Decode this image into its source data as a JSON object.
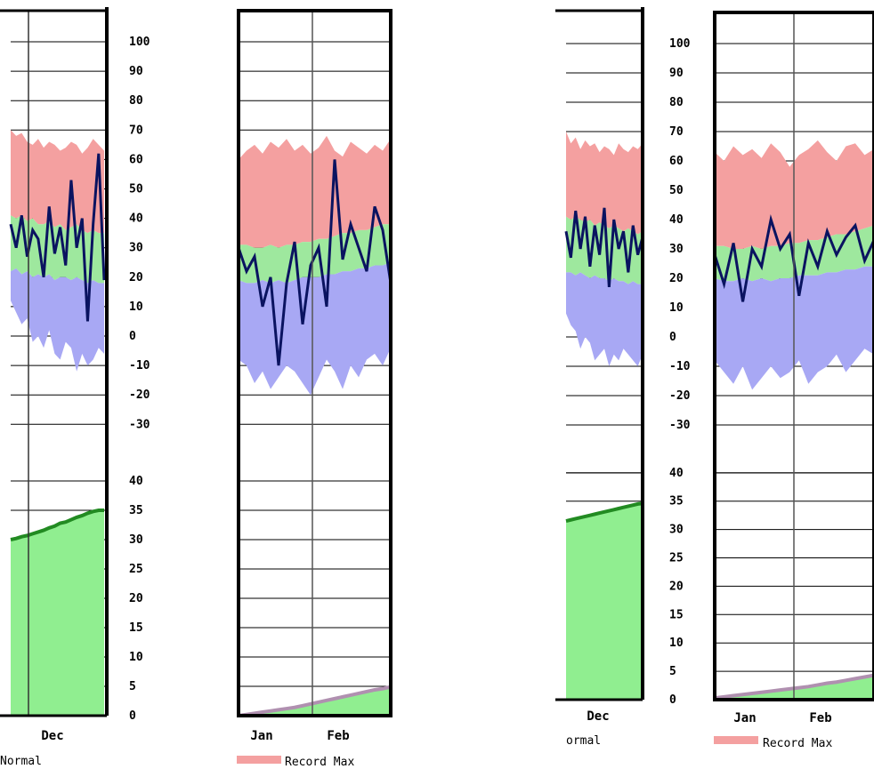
{
  "legend": {
    "normal_label": "Normal",
    "normal_label_cropped": "ormal",
    "record_max_label": "Record Max",
    "record_max_color": "#f4a0a0"
  },
  "colors": {
    "record_max": "#f4a0a0",
    "normal": "#9ee89e",
    "record_min": "#a8a8f4",
    "observed": "#0a1360",
    "snow_fill": "#90ee90",
    "snow_line": "#228b22",
    "accum_line": "#b090b0",
    "grid": "#000000"
  },
  "chart_data": [
    {
      "type": "area",
      "panel": "temperature-and-snow-left",
      "months": [
        "Dec",
        "Jan",
        "Feb"
      ],
      "temp_axis": {
        "ticks": [
          100,
          90,
          80,
          70,
          60,
          50,
          40,
          30,
          20,
          10,
          0,
          -10,
          -20,
          -30
        ],
        "ylim": [
          -40,
          100
        ]
      },
      "snow_axis": {
        "ticks": [
          40,
          35,
          30,
          25,
          20,
          15,
          10,
          5,
          0
        ],
        "ylim": [
          0,
          40
        ]
      },
      "dec": {
        "record_high": [
          70,
          68,
          69,
          66,
          65,
          67,
          64,
          66,
          65,
          63,
          64,
          66,
          65,
          62,
          64,
          67,
          65,
          63
        ],
        "normal_high": [
          41,
          40,
          41,
          39,
          40,
          38,
          38,
          39,
          37,
          38,
          36,
          37,
          38,
          36,
          35,
          36,
          35,
          35
        ],
        "normal_low": [
          22,
          23,
          21,
          22,
          20,
          21,
          20,
          21,
          19,
          20,
          20,
          19,
          20,
          19,
          18,
          19,
          18,
          18
        ],
        "record_low": [
          12,
          8,
          4,
          6,
          -2,
          0,
          -4,
          2,
          -6,
          -8,
          -2,
          -4,
          -12,
          -6,
          -10,
          -8,
          -4,
          -6
        ],
        "observed": [
          38,
          30,
          41,
          27,
          36,
          33,
          20,
          44,
          28,
          37,
          24,
          53,
          30,
          40,
          5,
          38,
          62,
          19
        ],
        "snow_depth": [
          30,
          30.2,
          30.5,
          30.7,
          31,
          31.3,
          31.6,
          32,
          32.3,
          32.8,
          33,
          33.4,
          33.8,
          34.1,
          34.5,
          34.8,
          35,
          35
        ]
      },
      "jan_feb": {
        "record_high": [
          60,
          63,
          65,
          62,
          66,
          64,
          67,
          63,
          65,
          62,
          64,
          68,
          63,
          61,
          66,
          64,
          62,
          65,
          63,
          67
        ],
        "normal_high": [
          31,
          31,
          30,
          30,
          31,
          30,
          31,
          31,
          32,
          32,
          33,
          33,
          34,
          35,
          35,
          36,
          36,
          37,
          38,
          38
        ],
        "normal_low": [
          19,
          18,
          18,
          19,
          18,
          19,
          18,
          19,
          20,
          20,
          20,
          21,
          21,
          22,
          22,
          23,
          23,
          24,
          24,
          25
        ],
        "record_low": [
          -8,
          -10,
          -16,
          -12,
          -18,
          -14,
          -10,
          -12,
          -16,
          -20,
          -14,
          -8,
          -12,
          -18,
          -10,
          -14,
          -8,
          -6,
          -10,
          -4
        ],
        "observed": [
          30,
          22,
          27,
          10,
          20,
          -10,
          18,
          32,
          4,
          24,
          30,
          10,
          60,
          26,
          38,
          30,
          22,
          44,
          36,
          18
        ],
        "snow_depth": [
          0,
          0.2,
          0.4,
          0.6,
          0.8,
          1,
          1.2,
          1.4,
          1.7,
          2,
          2.3,
          2.6,
          2.9,
          3.2,
          3.5,
          3.8,
          4.1,
          4.4,
          4.6,
          4.9
        ]
      }
    },
    {
      "type": "area",
      "panel": "temperature-and-snow-right",
      "months": [
        "Dec",
        "Jan",
        "Feb"
      ],
      "temp_axis": {
        "ticks": [
          100,
          90,
          80,
          70,
          60,
          50,
          40,
          30,
          20,
          10,
          0,
          -10,
          -20,
          -30
        ],
        "ylim": [
          -40,
          100
        ]
      },
      "snow_axis": {
        "ticks": [
          40,
          35,
          30,
          25,
          20,
          15,
          10,
          5,
          0
        ],
        "ylim": [
          0,
          40
        ]
      },
      "dec": {
        "record_high": [
          70,
          66,
          68,
          64,
          67,
          65,
          66,
          63,
          65,
          64,
          62,
          66,
          64,
          63,
          65,
          64,
          66
        ],
        "normal_high": [
          41,
          40,
          41,
          40,
          39,
          40,
          38,
          39,
          38,
          37,
          38,
          37,
          36,
          37,
          36,
          35,
          36
        ],
        "normal_low": [
          22,
          22,
          21,
          22,
          21,
          20,
          21,
          20,
          20,
          19,
          20,
          19,
          19,
          18,
          19,
          18,
          18
        ],
        "record_low": [
          8,
          4,
          2,
          -4,
          0,
          -2,
          -8,
          -6,
          -4,
          -10,
          -6,
          -8,
          -4,
          -6,
          -8,
          -10,
          -6
        ],
        "observed": [
          36,
          27,
          43,
          30,
          41,
          24,
          38,
          28,
          44,
          17,
          40,
          30,
          36,
          22,
          38,
          28,
          34
        ],
        "snow_depth": [
          31.5,
          31.7,
          31.9,
          32.1,
          32.3,
          32.5,
          32.7,
          32.9,
          33.1,
          33.3,
          33.5,
          33.7,
          33.9,
          34.1,
          34.3,
          34.5,
          34.6
        ]
      },
      "jan_feb": {
        "record_high": [
          63,
          60,
          65,
          62,
          64,
          61,
          66,
          63,
          58,
          62,
          64,
          67,
          63,
          60,
          65,
          66,
          62,
          64
        ],
        "normal_high": [
          31,
          31,
          30,
          30,
          31,
          30,
          31,
          31,
          32,
          32,
          33,
          33,
          34,
          35,
          35,
          36,
          37,
          38
        ],
        "normal_low": [
          20,
          19,
          19,
          20,
          19,
          20,
          19,
          20,
          20,
          21,
          21,
          21,
          22,
          22,
          23,
          23,
          24,
          24
        ],
        "record_low": [
          -8,
          -12,
          -16,
          -10,
          -18,
          -14,
          -10,
          -14,
          -12,
          -8,
          -16,
          -12,
          -10,
          -6,
          -12,
          -8,
          -4,
          -6
        ],
        "observed": [
          28,
          18,
          32,
          12,
          30,
          24,
          40,
          30,
          35,
          14,
          32,
          24,
          36,
          28,
          34,
          38,
          26,
          33
        ],
        "snow_depth": [
          0.3,
          0.5,
          0.7,
          0.9,
          1.1,
          1.3,
          1.5,
          1.7,
          1.9,
          2.1,
          2.3,
          2.6,
          2.9,
          3.1,
          3.4,
          3.7,
          4,
          4.3
        ]
      }
    }
  ]
}
